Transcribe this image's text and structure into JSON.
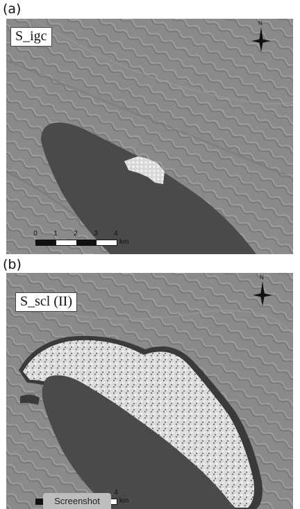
{
  "panels": [
    {
      "letter": "(a)",
      "label": "S_igc",
      "north_letter": "N",
      "scale_ticks": [
        "0",
        "1",
        "2",
        "3",
        "4"
      ],
      "scale_unit": "km"
    },
    {
      "letter": "(b)",
      "label": "S_scl (II)",
      "north_letter": "N",
      "scale_ticks": [
        "4"
      ],
      "scale_unit": "km"
    }
  ],
  "overlay_button": "Screenshot",
  "colors": {
    "terrain": "#8a8a8a",
    "lake": "#4a4a4a",
    "highlight": "#e6e6e6"
  }
}
